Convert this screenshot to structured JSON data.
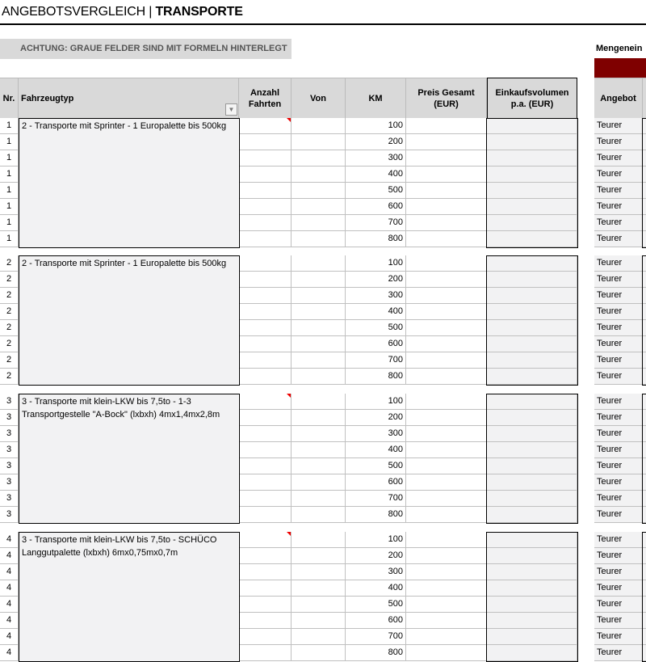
{
  "header": {
    "title_light": "ANGEBOTSVERGLEICH | ",
    "title_bold": "TRANSPORTE"
  },
  "warning": "ACHTUNG: GRAUE FELDER SIND MIT FORMELN HINTERLEGT",
  "side_label": "Mengenein",
  "colors": {
    "accent": "#7f0000",
    "header_bg": "#d9d9d9",
    "formula_bg": "#f2f2f3"
  },
  "columns": {
    "nr": "Nr.",
    "fahrzeugtyp": "Fahrzeugtyp",
    "anzahl": "Anzahl Fahrten",
    "von": "Von",
    "km": "KM",
    "preis": "Preis Gesamt (EUR)",
    "einkauf": "Einkaufsvolumen p.a. (EUR)",
    "angebot": "Angebot"
  },
  "groups": [
    {
      "nr": "1",
      "desc": "2 - Transporte mit Sprinter - 1 Europalette bis 500kg",
      "comment": true,
      "km": [
        "100",
        "200",
        "300",
        "400",
        "500",
        "600",
        "700",
        "800"
      ],
      "angebot": "Teurer"
    },
    {
      "nr": "2",
      "desc": "2 - Transporte mit Sprinter - 1 Europalette bis 500kg",
      "comment": false,
      "km": [
        "100",
        "200",
        "300",
        "400",
        "500",
        "600",
        "700",
        "800"
      ],
      "angebot": "Teurer"
    },
    {
      "nr": "3",
      "desc": "3 - Transporte mit klein-LKW bis 7,5to - 1-3 Transportgestelle \"A-Bock\" (lxbxh) 4mx1,4mx2,8m",
      "comment": true,
      "km": [
        "100",
        "200",
        "300",
        "400",
        "500",
        "600",
        "700",
        "800"
      ],
      "angebot": "Teurer"
    },
    {
      "nr": "4",
      "desc": "3 - Transporte mit klein-LKW bis 7,5to - SCHÜCO Langgutpalette  (lxbxh) 6mx0,75mx0,7m",
      "comment": true,
      "km": [
        "100",
        "200",
        "300",
        "400",
        "500",
        "600",
        "700",
        "800"
      ],
      "angebot": "Teurer"
    }
  ]
}
